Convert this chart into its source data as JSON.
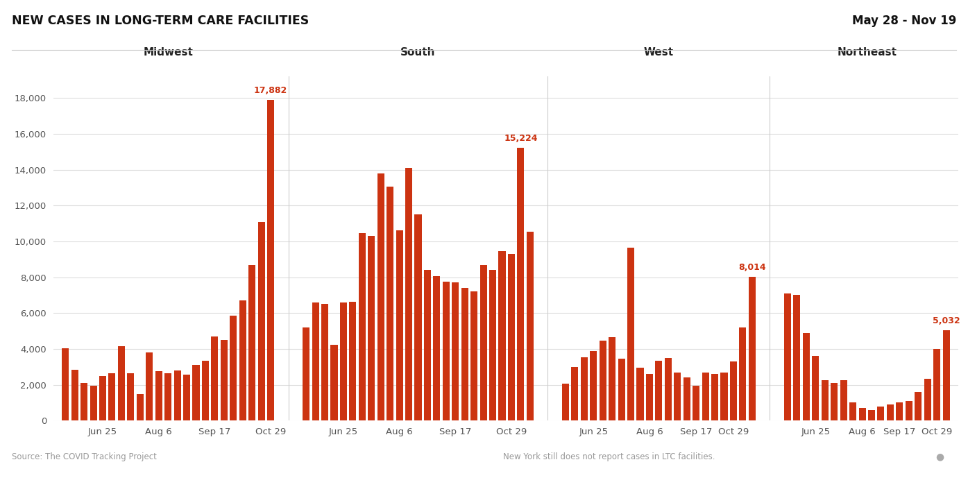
{
  "title": "NEW CASES IN LONG-TERM CARE FACILITIES",
  "date_range": "May 28 - Nov 19",
  "bar_color": "#CC3311",
  "background_color": "#FFFFFF",
  "ylim_max": 19200,
  "yticks": [
    0,
    2000,
    4000,
    6000,
    8000,
    10000,
    12000,
    14000,
    16000,
    18000
  ],
  "source_text": "Source: The COVID Tracking Project",
  "footnote_text": "New York still does not report cases in LTC facilities.",
  "regions": [
    {
      "name": "Midwest",
      "values": [
        4050,
        2850,
        2100,
        1950,
        2500,
        2650,
        4150,
        2650,
        1500,
        3800,
        2750,
        2650,
        2800,
        2550,
        3100,
        3350,
        4700,
        4500,
        5850,
        6700,
        8700,
        11100,
        17882
      ],
      "peak_value": 17882,
      "peak_label": "17,882",
      "peak_bar": 22,
      "date_tick_bars": [
        4,
        10,
        16,
        22
      ],
      "date_tick_labels": [
        "Jun 25",
        "Aug 6",
        "Sep 17",
        "Oct 29"
      ]
    },
    {
      "name": "South",
      "values": [
        5200,
        6600,
        6500,
        4250,
        6600,
        6650,
        10450,
        10300,
        13800,
        13050,
        10600,
        14100,
        11500,
        8400,
        8050,
        7750,
        7700,
        7400,
        7200,
        8700,
        8400,
        9450,
        9300,
        15224,
        10550
      ],
      "peak_value": 15224,
      "peak_label": "15,224",
      "peak_bar": 23,
      "date_tick_bars": [
        4,
        10,
        16,
        22
      ],
      "date_tick_labels": [
        "Jun 25",
        "Aug 6",
        "Sep 17",
        "Oct 29"
      ]
    },
    {
      "name": "West",
      "values": [
        2050,
        3000,
        3550,
        3900,
        4450,
        4650,
        3450,
        9650,
        2950,
        2600,
        3350,
        3500,
        2700,
        2400,
        1950,
        2700,
        2600,
        2700,
        3300,
        5200,
        8014
      ],
      "peak_value": 8014,
      "peak_label": "8,014",
      "peak_bar": 20,
      "date_tick_bars": [
        3,
        9,
        14,
        18
      ],
      "date_tick_labels": [
        "Jun 25",
        "Aug 6",
        "Sep 17",
        "Oct 29"
      ]
    },
    {
      "name": "Northeast",
      "values": [
        7100,
        7000,
        4900,
        3600,
        2250,
        2100,
        2250,
        1000,
        700,
        600,
        800,
        900,
        1000,
        1100,
        1600,
        2350,
        4000,
        5032
      ],
      "peak_value": 5032,
      "peak_label": "5,032",
      "peak_bar": 17,
      "date_tick_bars": [
        3,
        8,
        12,
        16
      ],
      "date_tick_labels": [
        "Jun 25",
        "Aug 6",
        "Sep 17",
        "Oct 29"
      ]
    }
  ]
}
